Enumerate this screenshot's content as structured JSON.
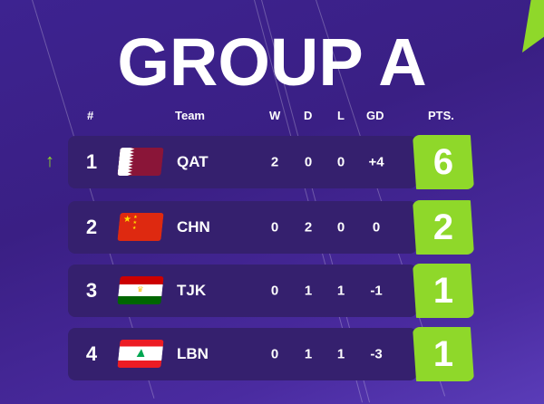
{
  "title": "GROUP A",
  "headers": {
    "rank": "#",
    "team": "Team",
    "w": "W",
    "d": "D",
    "l": "L",
    "gd": "GD",
    "pts": "PTS."
  },
  "colors": {
    "background": "#3d2390",
    "row": "#35206e",
    "accent": "#8fd82a"
  },
  "rows": [
    {
      "rank": "1",
      "team": "QAT",
      "flag": "qatar-flag",
      "w": "2",
      "d": "0",
      "l": "0",
      "gd": "+4",
      "pts": "6",
      "trend": "up-arrow-icon"
    },
    {
      "rank": "2",
      "team": "CHN",
      "flag": "china-flag",
      "w": "0",
      "d": "2",
      "l": "0",
      "gd": "0",
      "pts": "2"
    },
    {
      "rank": "3",
      "team": "TJK",
      "flag": "tajikistan-flag",
      "w": "0",
      "d": "1",
      "l": "1",
      "gd": "-1",
      "pts": "1"
    },
    {
      "rank": "4",
      "team": "LBN",
      "flag": "lebanon-flag",
      "w": "0",
      "d": "1",
      "l": "1",
      "gd": "-3",
      "pts": "1"
    }
  ]
}
